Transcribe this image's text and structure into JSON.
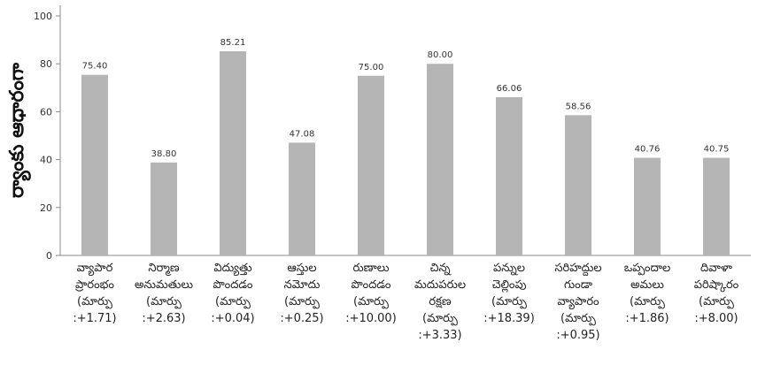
{
  "chart_data": {
    "type": "bar",
    "title": "",
    "xlabel": "",
    "ylabel": "ర్యాంకు ఆధారంగా",
    "ylim": [
      0,
      100
    ],
    "yticks": [
      0,
      20,
      40,
      60,
      80,
      100
    ],
    "grid": false,
    "bar_color": "#b5b5b5",
    "categories": [
      [
        "వ్యాపార",
        "ప్రారంభం",
        "(మార్పు",
        ":+1.71)"
      ],
      [
        "నిర్మాణ",
        "అనుమతులు",
        "(మార్పు",
        ":+2.63)"
      ],
      [
        "విద్యుత్తు",
        "పొందడం",
        "(మార్పు",
        ":+0.04)"
      ],
      [
        "ఆస్తుల",
        "నమోదు",
        "(మార్పు",
        ":+0.25)"
      ],
      [
        "రుణాలు",
        "పొందడం",
        "(మార్పు",
        ":+10.00)"
      ],
      [
        "చిన్న",
        "మదుపరుల",
        "రక్షణ",
        "(మార్పు",
        ":+3.33)"
      ],
      [
        "పన్నుల",
        "చెల్లింపు",
        "(మార్పు",
        ":+18.39)"
      ],
      [
        "సరిహద్దుల",
        "గుండా",
        "వ్యాపారం",
        "(మార్పు",
        ":+0.95)"
      ],
      [
        "ఒప్పందాల",
        "అమలు",
        "(మార్పు",
        ":+1.86)"
      ],
      [
        "దివాళా",
        "పరిష్కారం",
        "(మార్పు",
        ":+8.00)"
      ]
    ],
    "values": [
      75.4,
      38.8,
      85.21,
      47.08,
      75.0,
      80.0,
      66.06,
      58.56,
      40.76,
      40.75
    ],
    "value_labels": [
      "75.40",
      "38.80",
      "85.21",
      "47.08",
      "75.00",
      "80.00",
      "66.06",
      "58.56",
      "40.76",
      "40.75"
    ]
  }
}
